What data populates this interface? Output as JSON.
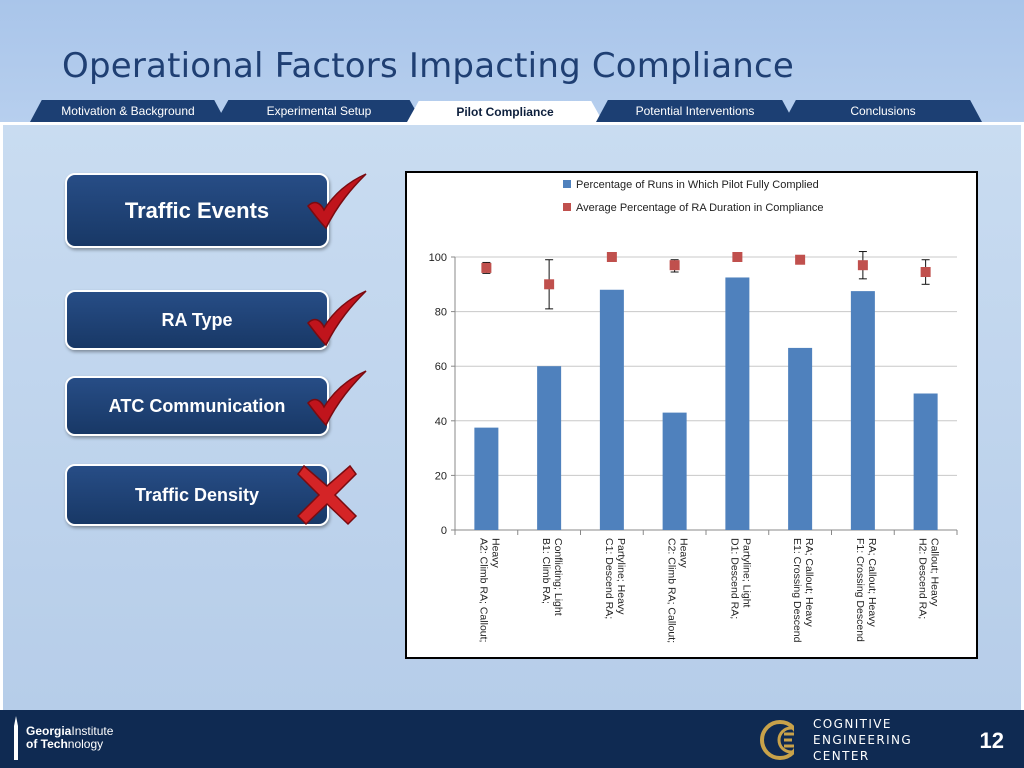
{
  "slide": {
    "title": "Operational Factors Impacting Compliance",
    "page_number": "12"
  },
  "tabs": [
    {
      "label": "Motivation & Background",
      "active": false
    },
    {
      "label": "Experimental Setup",
      "active": false
    },
    {
      "label": "Pilot Compliance",
      "active": true
    },
    {
      "label": "Potential Interventions",
      "active": false
    },
    {
      "label": "Conclusions",
      "active": false
    }
  ],
  "factors": [
    {
      "label": "Traffic Events",
      "status": "check"
    },
    {
      "label": "RA Type",
      "status": "check"
    },
    {
      "label": "ATC Communication",
      "status": "check"
    },
    {
      "label": "Traffic Density",
      "status": "cross"
    }
  ],
  "colors": {
    "bar": "#4f81bd",
    "marker": "#c0504d",
    "check": "#c0141c",
    "cross": "#d42426"
  },
  "chart_data": {
    "type": "bar",
    "title": "",
    "xlabel": "",
    "ylabel": "",
    "ylim": [
      0,
      100
    ],
    "yticks": [
      0,
      20,
      40,
      60,
      80,
      100
    ],
    "legend_position": "top",
    "categories": [
      "A2: Climb RA; Callout; Heavy",
      "B1: Climb RA; Conflicting; Light",
      "C1: Descend RA; Partyline; Heavy",
      "C2: Climb RA; Callout; Heavy",
      "D1: Descend RA; Partyline; Light",
      "E1: Crossing Descend RA; Callout; Heavy",
      "F1: Crossing Descend RA; Callout; Heavy",
      "H2: Descend RA; Callout; Heavy"
    ],
    "category_lines": [
      [
        "A2: Climb RA; Callout;",
        "Heavy"
      ],
      [
        "B1: Climb RA;",
        "Conflicting; Light"
      ],
      [
        "C1: Descend RA;",
        "Partyline; Heavy"
      ],
      [
        "C2: Climb RA; Callout;",
        "Heavy"
      ],
      [
        "D1: Descend RA;",
        "Partyline; Light"
      ],
      [
        "E1: Crossing Descend",
        "RA; Callout; Heavy"
      ],
      [
        "F1: Crossing Descend",
        "RA; Callout; Heavy"
      ],
      [
        "H2: Descend RA;",
        "Callout; Heavy"
      ]
    ],
    "series": [
      {
        "name": "Percentage of Runs in Which Pilot Fully Complied",
        "kind": "bar",
        "values": [
          37.5,
          60,
          88,
          43,
          92.5,
          66.7,
          87.5,
          50
        ]
      },
      {
        "name": "Average Percentage of RA Duration in Compliance",
        "kind": "marker",
        "values": [
          96,
          90,
          100,
          97,
          100,
          99,
          97,
          94.5
        ],
        "error": [
          [
            94,
            98
          ],
          [
            81,
            99
          ],
          null,
          [
            94.5,
            99
          ],
          null,
          null,
          [
            92,
            102
          ],
          [
            90,
            99
          ]
        ]
      }
    ]
  }
}
